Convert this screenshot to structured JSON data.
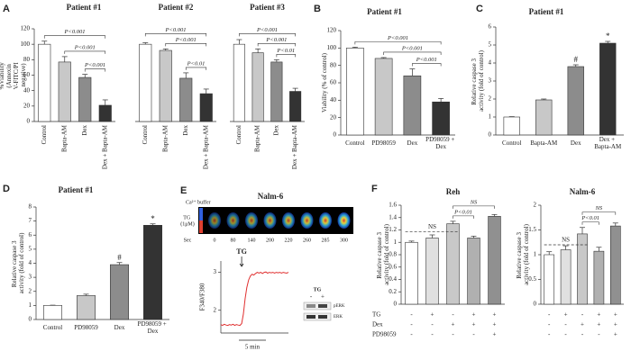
{
  "panel_labels": [
    "A",
    "B",
    "C",
    "D",
    "E",
    "F"
  ],
  "chart_data": [
    {
      "type": "bar",
      "title": "Patient #1",
      "y_label": "%Viability (Annexin V-FITC/PI negative)",
      "categories": [
        "Control",
        "Bapta-AM",
        "Dex",
        "Dex + Bapta-AM"
      ],
      "values": [
        100,
        77,
        57,
        21
      ],
      "errors": [
        4,
        7,
        4,
        7
      ],
      "colors": [
        "#ffffff",
        "#c8c8c8",
        "#8c8c8c",
        "#333333"
      ],
      "ylim": [
        0,
        120
      ],
      "yticks": [
        0,
        20,
        40,
        60,
        80,
        100,
        120
      ],
      "brackets": [
        {
          "text": "P<0.001",
          "between": [
            2,
            3
          ]
        },
        {
          "text": "P<0.001",
          "between": [
            1,
            3
          ]
        },
        {
          "text": "P<0.001",
          "between": [
            0,
            3
          ]
        }
      ]
    },
    {
      "type": "bar",
      "title": "Patient #2",
      "categories": [
        "Control",
        "Bapta-AM",
        "Dex",
        "Dex + Bapta-AM"
      ],
      "values": [
        100,
        92,
        56,
        36
      ],
      "errors": [
        2,
        2,
        7,
        6
      ],
      "colors": [
        "#ffffff",
        "#c8c8c8",
        "#8c8c8c",
        "#333333"
      ],
      "ylim": [
        0,
        120
      ],
      "brackets": [
        {
          "text": "P<0.01",
          "between": [
            2,
            3
          ]
        },
        {
          "text": "P<0.001",
          "between": [
            1,
            3
          ]
        },
        {
          "text": "P<0.001",
          "between": [
            0,
            3
          ]
        }
      ]
    },
    {
      "type": "bar",
      "title": "Patient #3",
      "categories": [
        "Control",
        "Bapta-AM",
        "Dex",
        "Dex + Bapta-AM"
      ],
      "values": [
        100,
        89,
        77,
        39
      ],
      "errors": [
        6,
        5,
        3,
        4
      ],
      "colors": [
        "#ffffff",
        "#c8c8c8",
        "#8c8c8c",
        "#333333"
      ],
      "ylim": [
        0,
        120
      ],
      "brackets": [
        {
          "text": "P<0.01",
          "between": [
            2,
            3
          ]
        },
        {
          "text": "P<0.001",
          "between": [
            1,
            3
          ]
        },
        {
          "text": "P<0.001",
          "between": [
            0,
            3
          ]
        }
      ]
    },
    {
      "type": "bar",
      "title": "Patient #1",
      "y_label": "Viability (% of control)",
      "categories": [
        "Control",
        "PD98059",
        "Dex",
        "PD98059 + Dex"
      ],
      "values": [
        100,
        88,
        68,
        38
      ],
      "errors": [
        1,
        1,
        8,
        4
      ],
      "colors": [
        "#ffffff",
        "#c8c8c8",
        "#8c8c8c",
        "#333333"
      ],
      "ylim": [
        0,
        120
      ],
      "yticks": [
        0,
        20,
        40,
        60,
        80,
        100,
        120
      ],
      "brackets": [
        {
          "text": "P<0.001",
          "between": [
            2,
            3
          ]
        },
        {
          "text": "P<0.001",
          "between": [
            1,
            3
          ]
        },
        {
          "text": "P<0.001",
          "between": [
            0,
            3
          ]
        }
      ]
    },
    {
      "type": "bar",
      "title": "Patient #1",
      "y_label": "Relative caspase 3 activity (fold of control)",
      "categories": [
        "Control",
        "Bapta-AM",
        "Dex",
        "Dex + Bapta-AM"
      ],
      "values": [
        1,
        1.95,
        3.8,
        5.1
      ],
      "errors": [
        0.02,
        0.05,
        0.1,
        0.1
      ],
      "bar_labels": [
        null,
        null,
        "#",
        "*"
      ],
      "colors": [
        "#ffffff",
        "#c8c8c8",
        "#8c8c8c",
        "#333333"
      ],
      "ylim": [
        0,
        6
      ],
      "yticks": [
        0,
        1,
        2,
        3,
        4,
        5,
        6
      ]
    },
    {
      "type": "bar",
      "title": "Patient #1",
      "y_label": "Relative caspase 3 activity (fold of control)",
      "categories": [
        "Control",
        "PD98059",
        "Dex",
        "PD98059 + Dex"
      ],
      "values": [
        1,
        1.7,
        3.9,
        6.7
      ],
      "errors": [
        0.02,
        0.1,
        0.15,
        0.1
      ],
      "bar_labels": [
        null,
        null,
        "#",
        "*"
      ],
      "colors": [
        "#ffffff",
        "#c8c8c8",
        "#8c8c8c",
        "#333333"
      ],
      "ylim": [
        0,
        8
      ],
      "yticks": [
        0,
        1,
        2,
        3,
        4,
        5,
        6,
        7,
        8
      ]
    },
    {
      "type": "line",
      "title": "Nalm-6",
      "y_label": "F340/F380",
      "values": [
        1.62,
        1.6,
        1.63,
        1.61,
        1.6,
        1.62,
        1.61,
        1.63,
        1.6,
        1.62,
        1.61,
        1.6,
        1.65,
        1.9,
        2.3,
        2.6,
        2.8,
        2.9,
        2.95,
        2.93,
        2.97,
        3.0,
        2.98,
        3.0,
        2.97,
        3.0,
        3.01,
        2.98,
        3.0,
        2.99,
        3.0,
        2.98,
        3.0,
        2.99,
        3.0,
        2.98,
        3.0,
        2.99,
        2.98,
        3.0
      ],
      "color": "#e03030",
      "ylim": [
        1.4,
        3.3
      ],
      "yticks": [
        2,
        3
      ],
      "annotation": "TG",
      "scale_bar": "5 min"
    },
    {
      "type": "bar",
      "title": "Reh",
      "y_label": "Relative caspase 3 activity (fold of control)",
      "values": [
        1.0,
        1.07,
        1.3,
        1.07,
        1.42
      ],
      "errors": [
        0.02,
        0.05,
        0.04,
        0.03,
        0.03
      ],
      "colors": [
        "#ffffff",
        "#e0e0e0",
        "#c8c8c8",
        "#b0b0b0",
        "#909090"
      ],
      "ylim": [
        0,
        1.6
      ],
      "yticks": [
        0,
        0.2,
        0.4,
        0.6,
        0.8,
        1,
        1.2,
        1.4,
        1.6
      ],
      "reference_line": {
        "value": 1.17,
        "label": "NS"
      },
      "brackets": [
        {
          "text": "P<0.01",
          "between": [
            2,
            3
          ]
        },
        {
          "text": "NS",
          "between": [
            2,
            4
          ]
        }
      ],
      "conditions": [
        {
          "name": "TG",
          "signs": [
            "-",
            "+",
            "-",
            "+",
            "+"
          ]
        },
        {
          "name": "Dex",
          "signs": [
            "-",
            "-",
            "+",
            "+",
            "+"
          ]
        },
        {
          "name": "PD98059",
          "signs": [
            "-",
            "-",
            "-",
            "-",
            "+"
          ]
        }
      ]
    },
    {
      "type": "bar",
      "title": "Nalm-6",
      "y_label": "Relative caspase 3 activity (fold of control)",
      "values": [
        1.0,
        1.1,
        1.42,
        1.07,
        1.58
      ],
      "errors": [
        0.06,
        0.08,
        0.13,
        0.08,
        0.06
      ],
      "colors": [
        "#ffffff",
        "#e0e0e0",
        "#c8c8c8",
        "#b0b0b0",
        "#909090"
      ],
      "ylim": [
        0,
        2
      ],
      "yticks": [
        0,
        0.5,
        1,
        1.5,
        2
      ],
      "reference_line": {
        "value": 1.2,
        "label": "NS"
      },
      "brackets": [
        {
          "text": "P<0.01",
          "between": [
            2,
            3
          ]
        },
        {
          "text": "NS",
          "between": [
            2,
            4
          ]
        }
      ],
      "condition_signs": [
        [
          "-",
          "+",
          "-",
          "+",
          "+"
        ],
        [
          "-",
          "-",
          "+",
          "+",
          "+"
        ],
        [
          "-",
          "-",
          "-",
          "-",
          "+"
        ]
      ]
    }
  ],
  "imaging": {
    "buffer_label": "Ca²⁺ buffer",
    "treatment_label": "TG (1μM)",
    "time_label": "Sec",
    "times": [
      0,
      80,
      140,
      200,
      220,
      260,
      285,
      300
    ]
  },
  "blot": {
    "treatment": "TG",
    "lanes": [
      "-",
      "+"
    ],
    "bands": [
      "pERK",
      "ERK"
    ]
  }
}
